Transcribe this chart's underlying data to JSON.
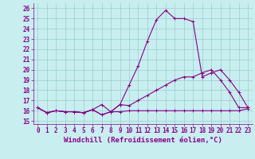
{
  "xlabel": "Windchill (Refroidissement éolien,°C)",
  "bg_color": "#c8eef0",
  "line_color": "#880088",
  "grid_color": "#99cccc",
  "xlim": [
    -0.5,
    23.5
  ],
  "ylim": [
    14.7,
    26.5
  ],
  "xticks": [
    0,
    1,
    2,
    3,
    4,
    5,
    6,
    7,
    8,
    9,
    10,
    11,
    12,
    13,
    14,
    15,
    16,
    17,
    18,
    19,
    20,
    21,
    22,
    23
  ],
  "yticks": [
    15,
    16,
    17,
    18,
    19,
    20,
    21,
    22,
    23,
    24,
    25,
    26
  ],
  "series1_x": [
    0,
    1,
    2,
    3,
    4,
    5,
    6,
    7,
    8,
    9,
    10,
    11,
    12,
    13,
    14,
    15,
    16,
    17,
    18,
    19,
    20,
    21,
    22,
    23
  ],
  "series1_y": [
    16.3,
    15.8,
    16.0,
    15.9,
    15.9,
    15.8,
    16.1,
    15.6,
    15.9,
    15.9,
    16.0,
    16.0,
    16.0,
    16.0,
    16.0,
    16.0,
    16.0,
    16.0,
    16.0,
    16.0,
    16.0,
    16.0,
    16.0,
    16.2
  ],
  "series2_x": [
    0,
    1,
    2,
    3,
    4,
    5,
    6,
    7,
    8,
    9,
    10,
    11,
    12,
    13,
    14,
    15,
    16,
    17,
    18,
    19,
    20,
    21,
    22,
    23
  ],
  "series2_y": [
    16.3,
    15.8,
    16.0,
    15.9,
    15.9,
    15.8,
    16.1,
    16.6,
    15.9,
    16.6,
    18.5,
    20.4,
    22.8,
    24.9,
    25.8,
    25.0,
    25.0,
    24.7,
    19.3,
    19.7,
    20.0,
    19.0,
    17.8,
    16.3
  ],
  "series3_x": [
    0,
    1,
    2,
    3,
    4,
    5,
    6,
    7,
    8,
    9,
    10,
    11,
    12,
    13,
    14,
    15,
    16,
    17,
    18,
    19,
    20,
    21,
    22,
    23
  ],
  "series3_y": [
    16.3,
    15.8,
    16.0,
    15.9,
    15.9,
    15.8,
    16.1,
    15.6,
    15.9,
    16.6,
    16.5,
    17.0,
    17.5,
    18.0,
    18.5,
    19.0,
    19.3,
    19.3,
    19.7,
    20.0,
    19.0,
    17.8,
    16.3,
    16.3
  ],
  "marker": "+",
  "markersize": 3,
  "linewidth": 0.8,
  "tick_fontsize": 5.5,
  "xlabel_fontsize": 6.5
}
